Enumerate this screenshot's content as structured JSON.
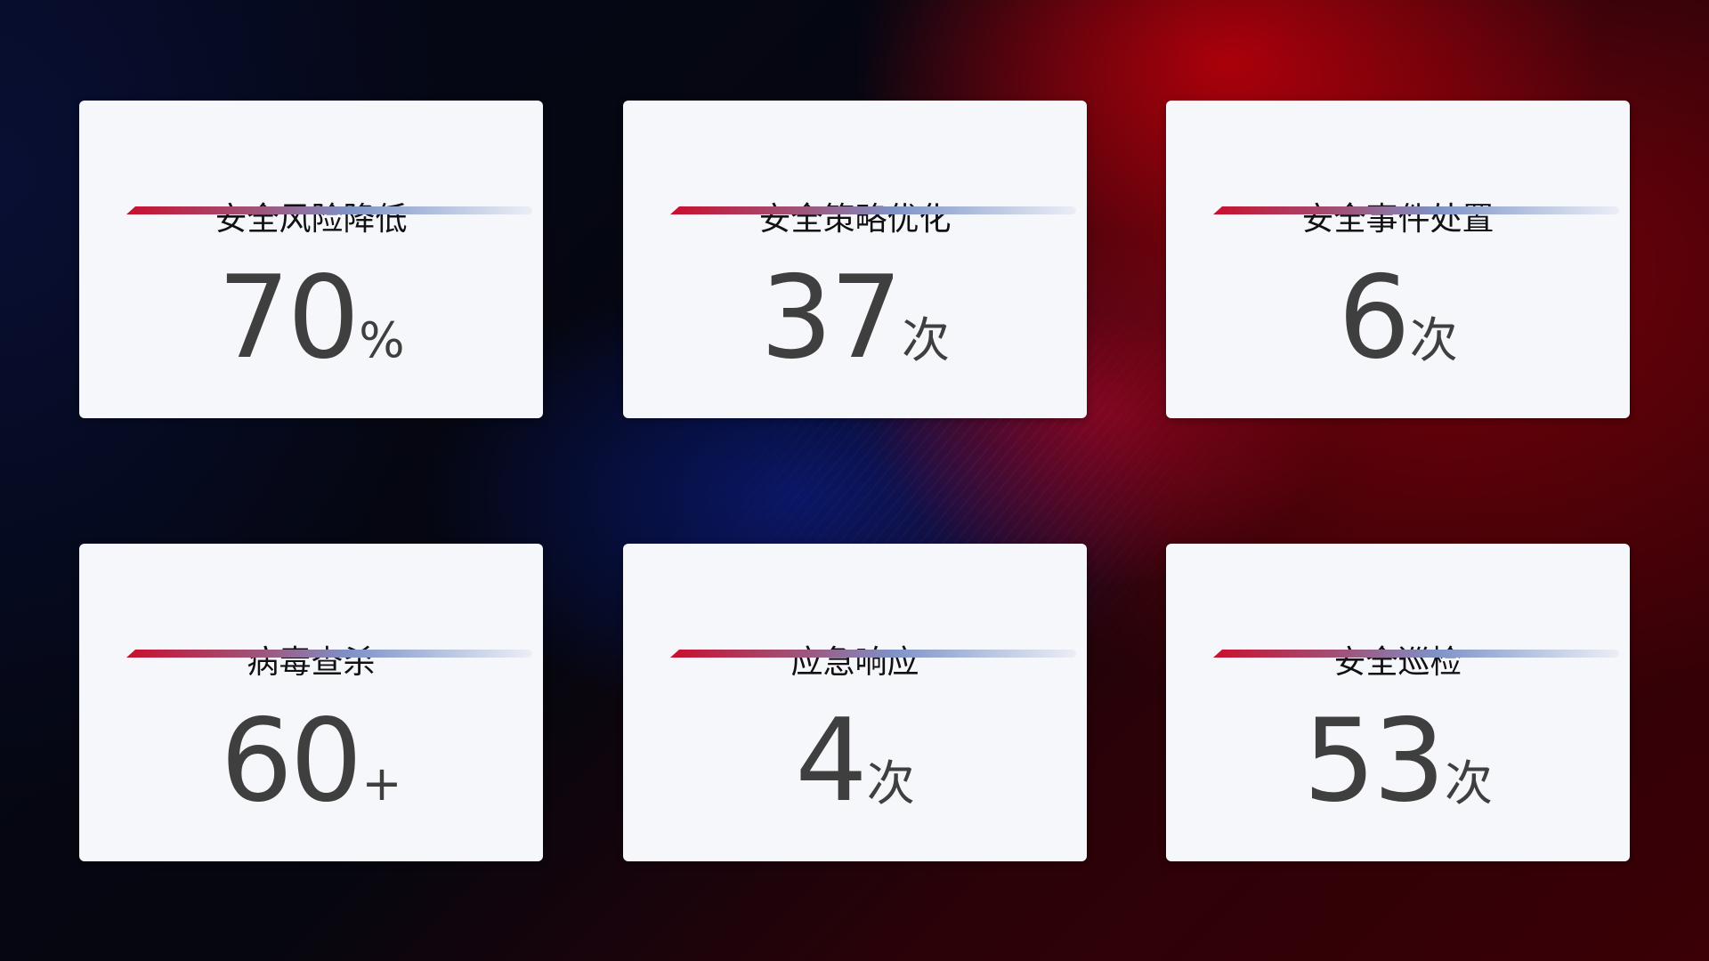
{
  "cards": [
    {
      "title": "安全风险降低",
      "value": "70",
      "unit": "%"
    },
    {
      "title": "安全策略优化",
      "value": "37",
      "unit": "次"
    },
    {
      "title": "安全事件处置",
      "value": "6",
      "unit": "次"
    },
    {
      "title": "病毒查杀",
      "value": "60",
      "unit": "+"
    },
    {
      "title": "应急响应",
      "value": "4",
      "unit": "次"
    },
    {
      "title": "安全巡检",
      "value": "53",
      "unit": "次"
    }
  ],
  "colors": {
    "accent_red": "#c8102e",
    "accent_blue": "#7f92c6",
    "card_bg": "#f6f7fb",
    "number": "#3f3f3f"
  }
}
